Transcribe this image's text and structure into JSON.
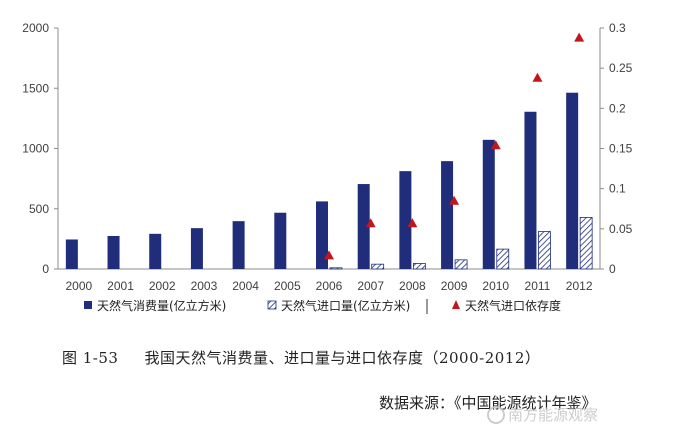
{
  "chart_data": {
    "type": "bar",
    "categories": [
      "2000",
      "2001",
      "2002",
      "2003",
      "2004",
      "2005",
      "2006",
      "2007",
      "2008",
      "2009",
      "2010",
      "2011",
      "2012"
    ],
    "series": [
      {
        "name": "天然气消费量(亿立方米)",
        "kind": "bar",
        "axis": "left",
        "color": "#1f2d7a",
        "pattern": "solid",
        "values": [
          245,
          274,
          292,
          339,
          397,
          467,
          561,
          705,
          812,
          895,
          1072,
          1305,
          1463
        ]
      },
      {
        "name": "天然气进口量(亿立方米)",
        "kind": "bar",
        "axis": "left",
        "color": "#1f2d7a",
        "pattern": "hatched",
        "values": [
          null,
          null,
          null,
          null,
          null,
          null,
          10,
          40,
          46,
          76,
          165,
          311,
          428
        ]
      },
      {
        "name": "天然气进口依存度",
        "kind": "marker",
        "marker": "triangle",
        "axis": "right",
        "color": "#c0161c",
        "values": [
          null,
          null,
          null,
          null,
          null,
          null,
          0.017,
          0.057,
          0.057,
          0.085,
          0.154,
          0.238,
          0.288
        ]
      }
    ],
    "y_left": {
      "min": 0,
      "max": 2000,
      "ticks": [
        "0",
        "500",
        "1000",
        "1500",
        "2000"
      ]
    },
    "y_right": {
      "min": 0,
      "max": 0.3,
      "ticks": [
        "0",
        "0.05",
        "0.1",
        "0.15",
        "0.2",
        "0.25",
        "0.3"
      ]
    },
    "grid": false,
    "legend_position": "bottom"
  },
  "caption": {
    "number": "图 1-53",
    "title": "我国天然气消费量、进口量与进口依存度（2000-2012）"
  },
  "source": "数据来源：《中国能源统计年鉴》",
  "watermark": "南方能源观察"
}
